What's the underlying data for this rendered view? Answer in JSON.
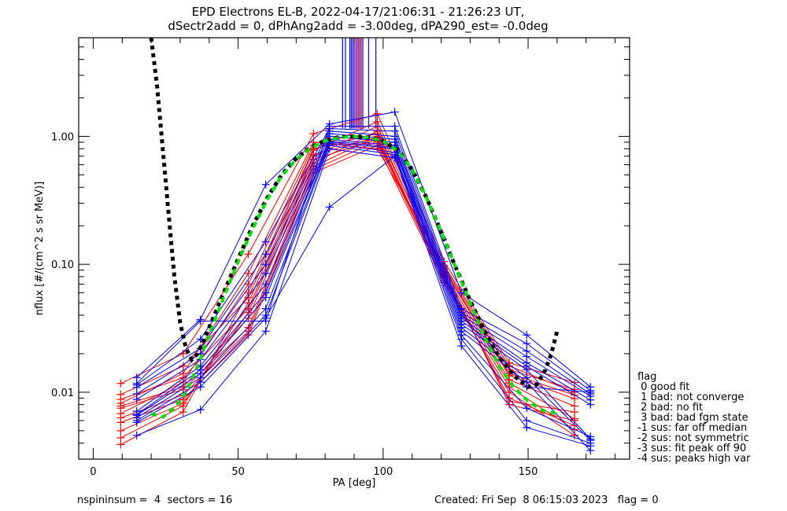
{
  "chart_data": {
    "type": "line",
    "title_lines": [
      "EPD Electrons EL-B, 2022-04-17/21:06:31 - 21:26:23 UT,",
      "dSectr2add = 0, dPhAng2add = -3.00deg, dPA290_est=  -0.0deg"
    ],
    "xlabel": "PA [deg]",
    "ylabel": "nflux [#/(cm^2 s sr MeV)]",
    "xscale": "linear",
    "yscale": "log",
    "xlim": [
      -5,
      185
    ],
    "ylim": [
      0.003,
      5.9
    ],
    "x_ticks": [
      0,
      50,
      100,
      150
    ],
    "x_tick_labels": [
      "0",
      "50",
      "100",
      "150"
    ],
    "y_ticks": [
      0.01,
      0.1,
      1.0
    ],
    "y_tick_labels": [
      "0.01",
      "0.10",
      "1.00"
    ],
    "grid": false,
    "series_colors": {
      "red": "#ff0000",
      "blue": "#0000ff",
      "fit_black": "#000000",
      "fit_green": "#00dd00"
    },
    "red_pa": [
      9.5,
      31,
      53.5,
      76,
      98,
      121,
      143.5,
      166
    ],
    "blue_pa": [
      15,
      37,
      59.5,
      81.5,
      104,
      127,
      149.5,
      171.5
    ],
    "red_series": [
      [
        0.0117,
        0.02,
        0.12,
        1.05,
        1.5,
        0.105,
        0.017,
        0.0119
      ],
      [
        0.0096,
        0.016,
        0.055,
        0.78,
        1.3,
        0.095,
        0.015,
        0.0105
      ],
      [
        0.0088,
        0.013,
        0.045,
        0.7,
        1.2,
        0.09,
        0.0135,
        0.0089
      ],
      [
        0.0078,
        0.011,
        0.038,
        0.62,
        1.1,
        0.085,
        0.0125,
        0.0078
      ],
      [
        0.0075,
        0.0105,
        0.032,
        0.58,
        1.0,
        0.08,
        0.0118,
        0.0062
      ],
      [
        0.0063,
        0.0095,
        0.03,
        0.55,
        0.92,
        0.075,
        0.011,
        0.0051
      ],
      [
        0.0058,
        0.0088,
        0.028,
        0.52,
        0.85,
        0.072,
        0.01,
        0.0046
      ],
      [
        0.005,
        0.0082,
        0.042,
        0.66,
        0.95,
        0.078,
        0.009,
        0.0055
      ],
      [
        0.0044,
        0.0078,
        0.05,
        0.72,
        0.98,
        0.082,
        0.0085,
        0.007
      ],
      [
        0.0039,
        0.007,
        0.06,
        0.8,
        1.05,
        0.088,
        0.008,
        0.006
      ],
      [
        0.0068,
        0.012,
        0.07,
        0.85,
        0.88,
        0.092,
        0.014,
        0.0095
      ],
      [
        0.0082,
        0.014,
        0.085,
        0.9,
        0.8,
        0.098,
        0.016,
        0.01
      ]
    ],
    "blue_series": [
      [
        0.013,
        0.037,
        0.42,
        1.25,
        1.55,
        0.06,
        0.028,
        0.011
      ],
      [
        0.0117,
        0.036,
        0.036,
        1.2,
        1.2,
        0.045,
        0.024,
        0.0103
      ],
      [
        0.0114,
        0.026,
        0.15,
        1.15,
        1.1,
        0.042,
        0.021,
        0.0097
      ],
      [
        0.0109,
        0.022,
        0.12,
        1.1,
        1.0,
        0.04,
        0.019,
        0.0093
      ],
      [
        0.0097,
        0.02,
        0.1,
        1.05,
        0.95,
        0.038,
        0.017,
        0.0087
      ],
      [
        0.0088,
        0.018,
        0.085,
        1.0,
        0.9,
        0.036,
        0.016,
        0.008
      ],
      [
        0.0071,
        0.016,
        0.07,
        0.95,
        0.85,
        0.034,
        0.015,
        0.0043
      ],
      [
        0.0067,
        0.015,
        0.06,
        0.92,
        0.82,
        0.032,
        0.013,
        0.0042
      ],
      [
        0.0066,
        0.014,
        0.055,
        0.9,
        0.8,
        0.03,
        0.012,
        0.0035
      ],
      [
        0.0063,
        0.013,
        0.045,
        0.88,
        0.75,
        0.028,
        0.0075,
        0.0045
      ],
      [
        0.006,
        0.012,
        0.04,
        0.85,
        0.72,
        0.026,
        0.006,
        0.004
      ],
      [
        0.0058,
        0.011,
        0.038,
        0.28,
        0.7,
        0.023,
        0.0053,
        0.0038
      ],
      [
        0.0046,
        0.0073,
        0.03,
        0.8,
        0.68,
        0.04,
        0.011,
        0.01
      ]
    ],
    "vertical_spikes": [
      {
        "pa": 86.0,
        "from": 1.15,
        "color": "blue"
      },
      {
        "pa": 87.0,
        "from": 1.15,
        "color": "blue"
      },
      {
        "pa": 88.5,
        "from": 1.15,
        "color": "blue"
      },
      {
        "pa": 89.0,
        "from": 1.15,
        "color": "blue"
      },
      {
        "pa": 89.5,
        "from": 1.15,
        "color": "blue"
      },
      {
        "pa": 90.0,
        "from": 1.15,
        "color": "blue"
      },
      {
        "pa": 90.5,
        "from": 1.15,
        "color": "red"
      },
      {
        "pa": 91.0,
        "from": 1.15,
        "color": "blue"
      },
      {
        "pa": 91.5,
        "from": 1.15,
        "color": "red"
      },
      {
        "pa": 92.0,
        "from": 1.15,
        "color": "blue"
      },
      {
        "pa": 92.5,
        "from": 1.15,
        "color": "red"
      },
      {
        "pa": 93.0,
        "from": 1.15,
        "color": "blue"
      },
      {
        "pa": 95.0,
        "from": 1.15,
        "color": "blue"
      },
      {
        "pa": 97.5,
        "from": 1.15,
        "color": "blue"
      }
    ],
    "fit_black": {
      "style": "dotted",
      "points": [
        [
          20,
          5.9
        ],
        [
          22,
          2.5
        ],
        [
          24,
          0.8
        ],
        [
          26,
          0.25
        ],
        [
          28,
          0.08
        ],
        [
          30,
          0.035
        ],
        [
          32,
          0.022
        ],
        [
          34,
          0.018
        ],
        [
          36,
          0.02
        ],
        [
          40,
          0.032
        ],
        [
          45,
          0.06
        ],
        [
          50,
          0.11
        ],
        [
          55,
          0.2
        ],
        [
          60,
          0.33
        ],
        [
          65,
          0.5
        ],
        [
          70,
          0.67
        ],
        [
          75,
          0.82
        ],
        [
          80,
          0.93
        ],
        [
          85,
          0.99
        ],
        [
          90,
          1.0
        ],
        [
          95,
          0.98
        ],
        [
          100,
          0.92
        ],
        [
          105,
          0.78
        ],
        [
          110,
          0.55
        ],
        [
          115,
          0.33
        ],
        [
          120,
          0.18
        ],
        [
          125,
          0.095
        ],
        [
          130,
          0.052
        ],
        [
          135,
          0.03
        ],
        [
          140,
          0.019
        ],
        [
          145,
          0.0135
        ],
        [
          150,
          0.011
        ],
        [
          153,
          0.0115
        ],
        [
          156,
          0.015
        ],
        [
          158,
          0.02
        ],
        [
          160,
          0.03
        ]
      ]
    },
    "fit_green": {
      "style": "dashed",
      "points": [
        [
          20,
          0.0068
        ],
        [
          24,
          0.0064
        ],
        [
          28,
          0.0075
        ],
        [
          32,
          0.01
        ],
        [
          36,
          0.016
        ],
        [
          40,
          0.028
        ],
        [
          45,
          0.055
        ],
        [
          50,
          0.105
        ],
        [
          55,
          0.19
        ],
        [
          60,
          0.32
        ],
        [
          65,
          0.49
        ],
        [
          70,
          0.66
        ],
        [
          75,
          0.81
        ],
        [
          80,
          0.92
        ],
        [
          85,
          0.98
        ],
        [
          90,
          1.0
        ],
        [
          95,
          0.98
        ],
        [
          100,
          0.92
        ],
        [
          105,
          0.77
        ],
        [
          110,
          0.55
        ],
        [
          115,
          0.33
        ],
        [
          120,
          0.18
        ],
        [
          125,
          0.095
        ],
        [
          130,
          0.05
        ],
        [
          135,
          0.027
        ],
        [
          140,
          0.016
        ],
        [
          145,
          0.011
        ],
        [
          150,
          0.0085
        ],
        [
          155,
          0.0072
        ],
        [
          160,
          0.0068
        ]
      ]
    },
    "legend": {
      "title": "flag",
      "placement": "right",
      "entries": [
        " 0 good fit",
        " 1 bad: not converge",
        " 2 bad: no fit",
        " 3 bad: bad fgm state",
        "-1 sus: far off median",
        "-2 sus: not symmetric",
        "-3 sus: fit peak off 90",
        "-4 sus: peaks high var"
      ]
    },
    "footer": {
      "left": "nspininsum =  4  sectors = 16",
      "right": "Created: Fri Sep  8 06:15:03 2023   flag = 0"
    }
  }
}
